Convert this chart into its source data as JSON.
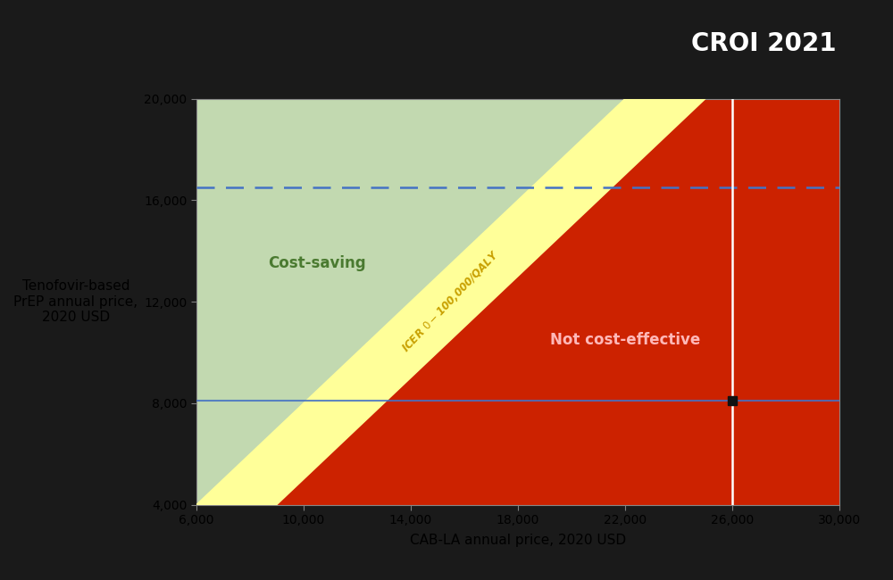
{
  "xmin": 6000,
  "xmax": 30000,
  "ymin": 4000,
  "ymax": 20000,
  "xticks": [
    6000,
    10000,
    14000,
    18000,
    22000,
    26000,
    30000
  ],
  "yticks": [
    4000,
    8000,
    12000,
    16000,
    20000
  ],
  "xlabel": "CAB-LA annual price, 2020 USD",
  "ylabel": "Tenofovir-based\nPrEP annual price,\n2020 USD",
  "hline_solid_y": 8100,
  "hline_dashed_y": 16500,
  "vline_x": 26000,
  "marker_x": 26000,
  "marker_y": 8100,
  "line1_x1": 6000,
  "line1_y1": 4000,
  "line1_x2": 22000,
  "line1_y2": 20000,
  "line2_x1": 9000,
  "line2_y1": 4000,
  "line2_x2": 25000,
  "line2_y2": 20000,
  "color_red": "#CC2200",
  "color_green": "#C2D9B0",
  "color_yellow": "#FFFF99",
  "color_dashed_line": "#4472C4",
  "color_solid_line": "#4472C4",
  "color_vline": "#FFFFFF",
  "color_marker": "#111111",
  "color_bg_slide": "#1A1A1A",
  "color_bg_plot": "#FFFFFF",
  "color_banner_bg": "#18B0CC",
  "banner_text": "CROI 2021",
  "label_cost_saving": "Cost-saving",
  "label_not_cost_effective": "Not cost-effective",
  "label_icer": "ICER $0 - $100,000/QALY",
  "label_cost_saving_color": "#4A7A30",
  "label_not_cost_effective_color": "#FFB8B8",
  "label_icer_color": "#C8A000",
  "figwidth": 10.0,
  "figheight": 6.5
}
